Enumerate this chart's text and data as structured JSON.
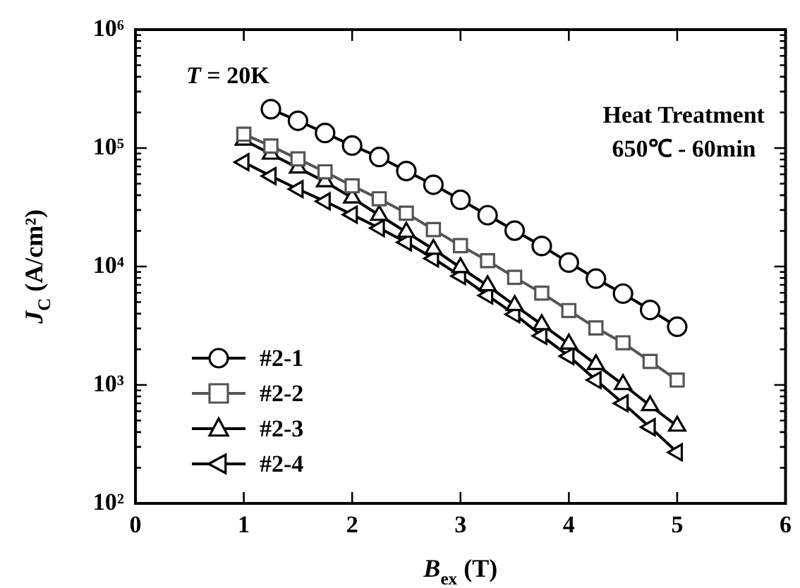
{
  "chart_data": {
    "type": "line",
    "xlabel": "B$_{ex}$ (T)",
    "ylabel": "J$_{C}$ (A/cm²)",
    "log": "y",
    "xlim": [
      0,
      6
    ],
    "xticks": [
      0,
      1,
      2,
      3,
      4,
      5,
      6
    ],
    "ylim": [
      100,
      1000000
    ],
    "yticks": [
      {
        "value": 100,
        "label": "10²"
      },
      {
        "value": 1000,
        "label": "10³"
      },
      {
        "value": 10000,
        "label": "10⁴"
      },
      {
        "value": 100000,
        "label": "10⁵"
      },
      {
        "value": 1000000,
        "label": "10⁶"
      }
    ],
    "legend": "bottom left",
    "line_style": "solid",
    "annotations": [
      "T = 20K",
      "Heat Treatment",
      "650℃ - 60min"
    ],
    "series": [
      {
        "name": "#2-1",
        "color": "#000000",
        "marker": "circle",
        "x": [
          1.25,
          1.5,
          1.75,
          2,
          2.25,
          2.5,
          2.75,
          3,
          3.25,
          3.5,
          3.75,
          4,
          4.25,
          4.5,
          4.75,
          5
        ],
        "values": [
          213000,
          170000,
          134000,
          105000,
          84000,
          64000,
          49000,
          36600,
          27100,
          20100,
          14900,
          10800,
          7900,
          5900,
          4300,
          3100
        ]
      },
      {
        "name": "#2-2",
        "color": "#555555",
        "marker": "square",
        "x": [
          1,
          1.25,
          1.5,
          1.75,
          2,
          2.25,
          2.5,
          2.75,
          3,
          3.25,
          3.5,
          3.75,
          4,
          4.25,
          4.5,
          4.75,
          5
        ],
        "values": [
          131000,
          104000,
          81000,
          63000,
          48000,
          37300,
          28200,
          20500,
          15000,
          11200,
          8100,
          5960,
          4250,
          3030,
          2270,
          1580,
          1100
        ]
      },
      {
        "name": "#2-3",
        "color": "#000000",
        "marker": "triangle",
        "x": [
          1,
          1.25,
          1.5,
          1.75,
          2,
          2.25,
          2.5,
          2.75,
          3,
          3.25,
          3.5,
          3.75,
          4,
          4.25,
          4.5,
          4.75,
          5
        ],
        "values": [
          117000,
          89000,
          68000,
          52000,
          38000,
          27100,
          19500,
          14000,
          9800,
          6900,
          4700,
          3240,
          2220,
          1490,
          1010,
          670,
          450
        ]
      },
      {
        "name": "#2-4",
        "color": "#000000",
        "marker": "triangle-left",
        "x": [
          1,
          1.25,
          1.5,
          1.75,
          2,
          2.25,
          2.5,
          2.75,
          3,
          3.25,
          3.5,
          3.75,
          4,
          4.25,
          4.5,
          4.75,
          5
        ],
        "values": [
          76000,
          58000,
          45000,
          35500,
          27400,
          21100,
          16000,
          11700,
          8300,
          5700,
          3950,
          2600,
          1750,
          1100,
          700,
          440,
          270
        ]
      }
    ]
  }
}
